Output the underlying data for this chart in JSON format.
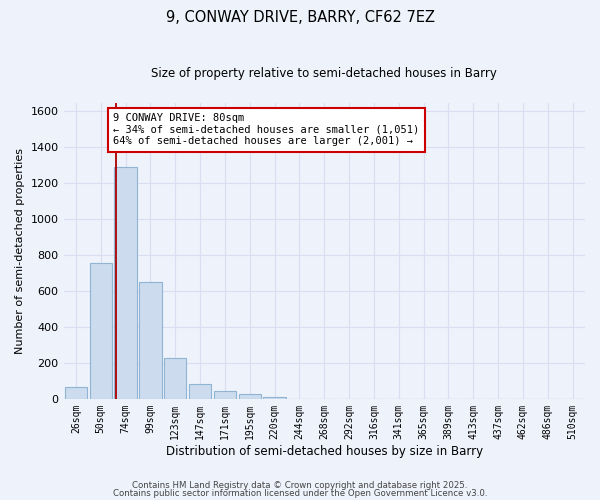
{
  "title": "9, CONWAY DRIVE, BARRY, CF62 7EZ",
  "subtitle": "Size of property relative to semi-detached houses in Barry",
  "xlabel": "Distribution of semi-detached houses by size in Barry",
  "ylabel": "Number of semi-detached properties",
  "bar_labels": [
    "26sqm",
    "50sqm",
    "74sqm",
    "99sqm",
    "123sqm",
    "147sqm",
    "171sqm",
    "195sqm",
    "220sqm",
    "244sqm",
    "268sqm",
    "292sqm",
    "316sqm",
    "341sqm",
    "365sqm",
    "389sqm",
    "413sqm",
    "437sqm",
    "462sqm",
    "486sqm",
    "510sqm"
  ],
  "bar_values": [
    65,
    755,
    1290,
    650,
    230,
    85,
    43,
    25,
    10,
    0,
    0,
    0,
    0,
    0,
    0,
    0,
    0,
    0,
    0,
    0,
    0
  ],
  "bar_color": "#ccdcee",
  "bar_edge_color": "#8fb4d4",
  "vline_color": "#aa0000",
  "ylim": [
    0,
    1650
  ],
  "yticks": [
    0,
    200,
    400,
    600,
    800,
    1000,
    1200,
    1400,
    1600
  ],
  "annotation_text": "9 CONWAY DRIVE: 80sqm\n← 34% of semi-detached houses are smaller (1,051)\n64% of semi-detached houses are larger (2,001) →",
  "annotation_box_color": "#ffffff",
  "annotation_box_edge": "#cc0000",
  "footnote1": "Contains HM Land Registry data © Crown copyright and database right 2025.",
  "footnote2": "Contains public sector information licensed under the Open Government Licence v3.0.",
  "bg_color": "#eef2fb",
  "grid_color": "#d8dff0",
  "spine_color": "#cccccc"
}
